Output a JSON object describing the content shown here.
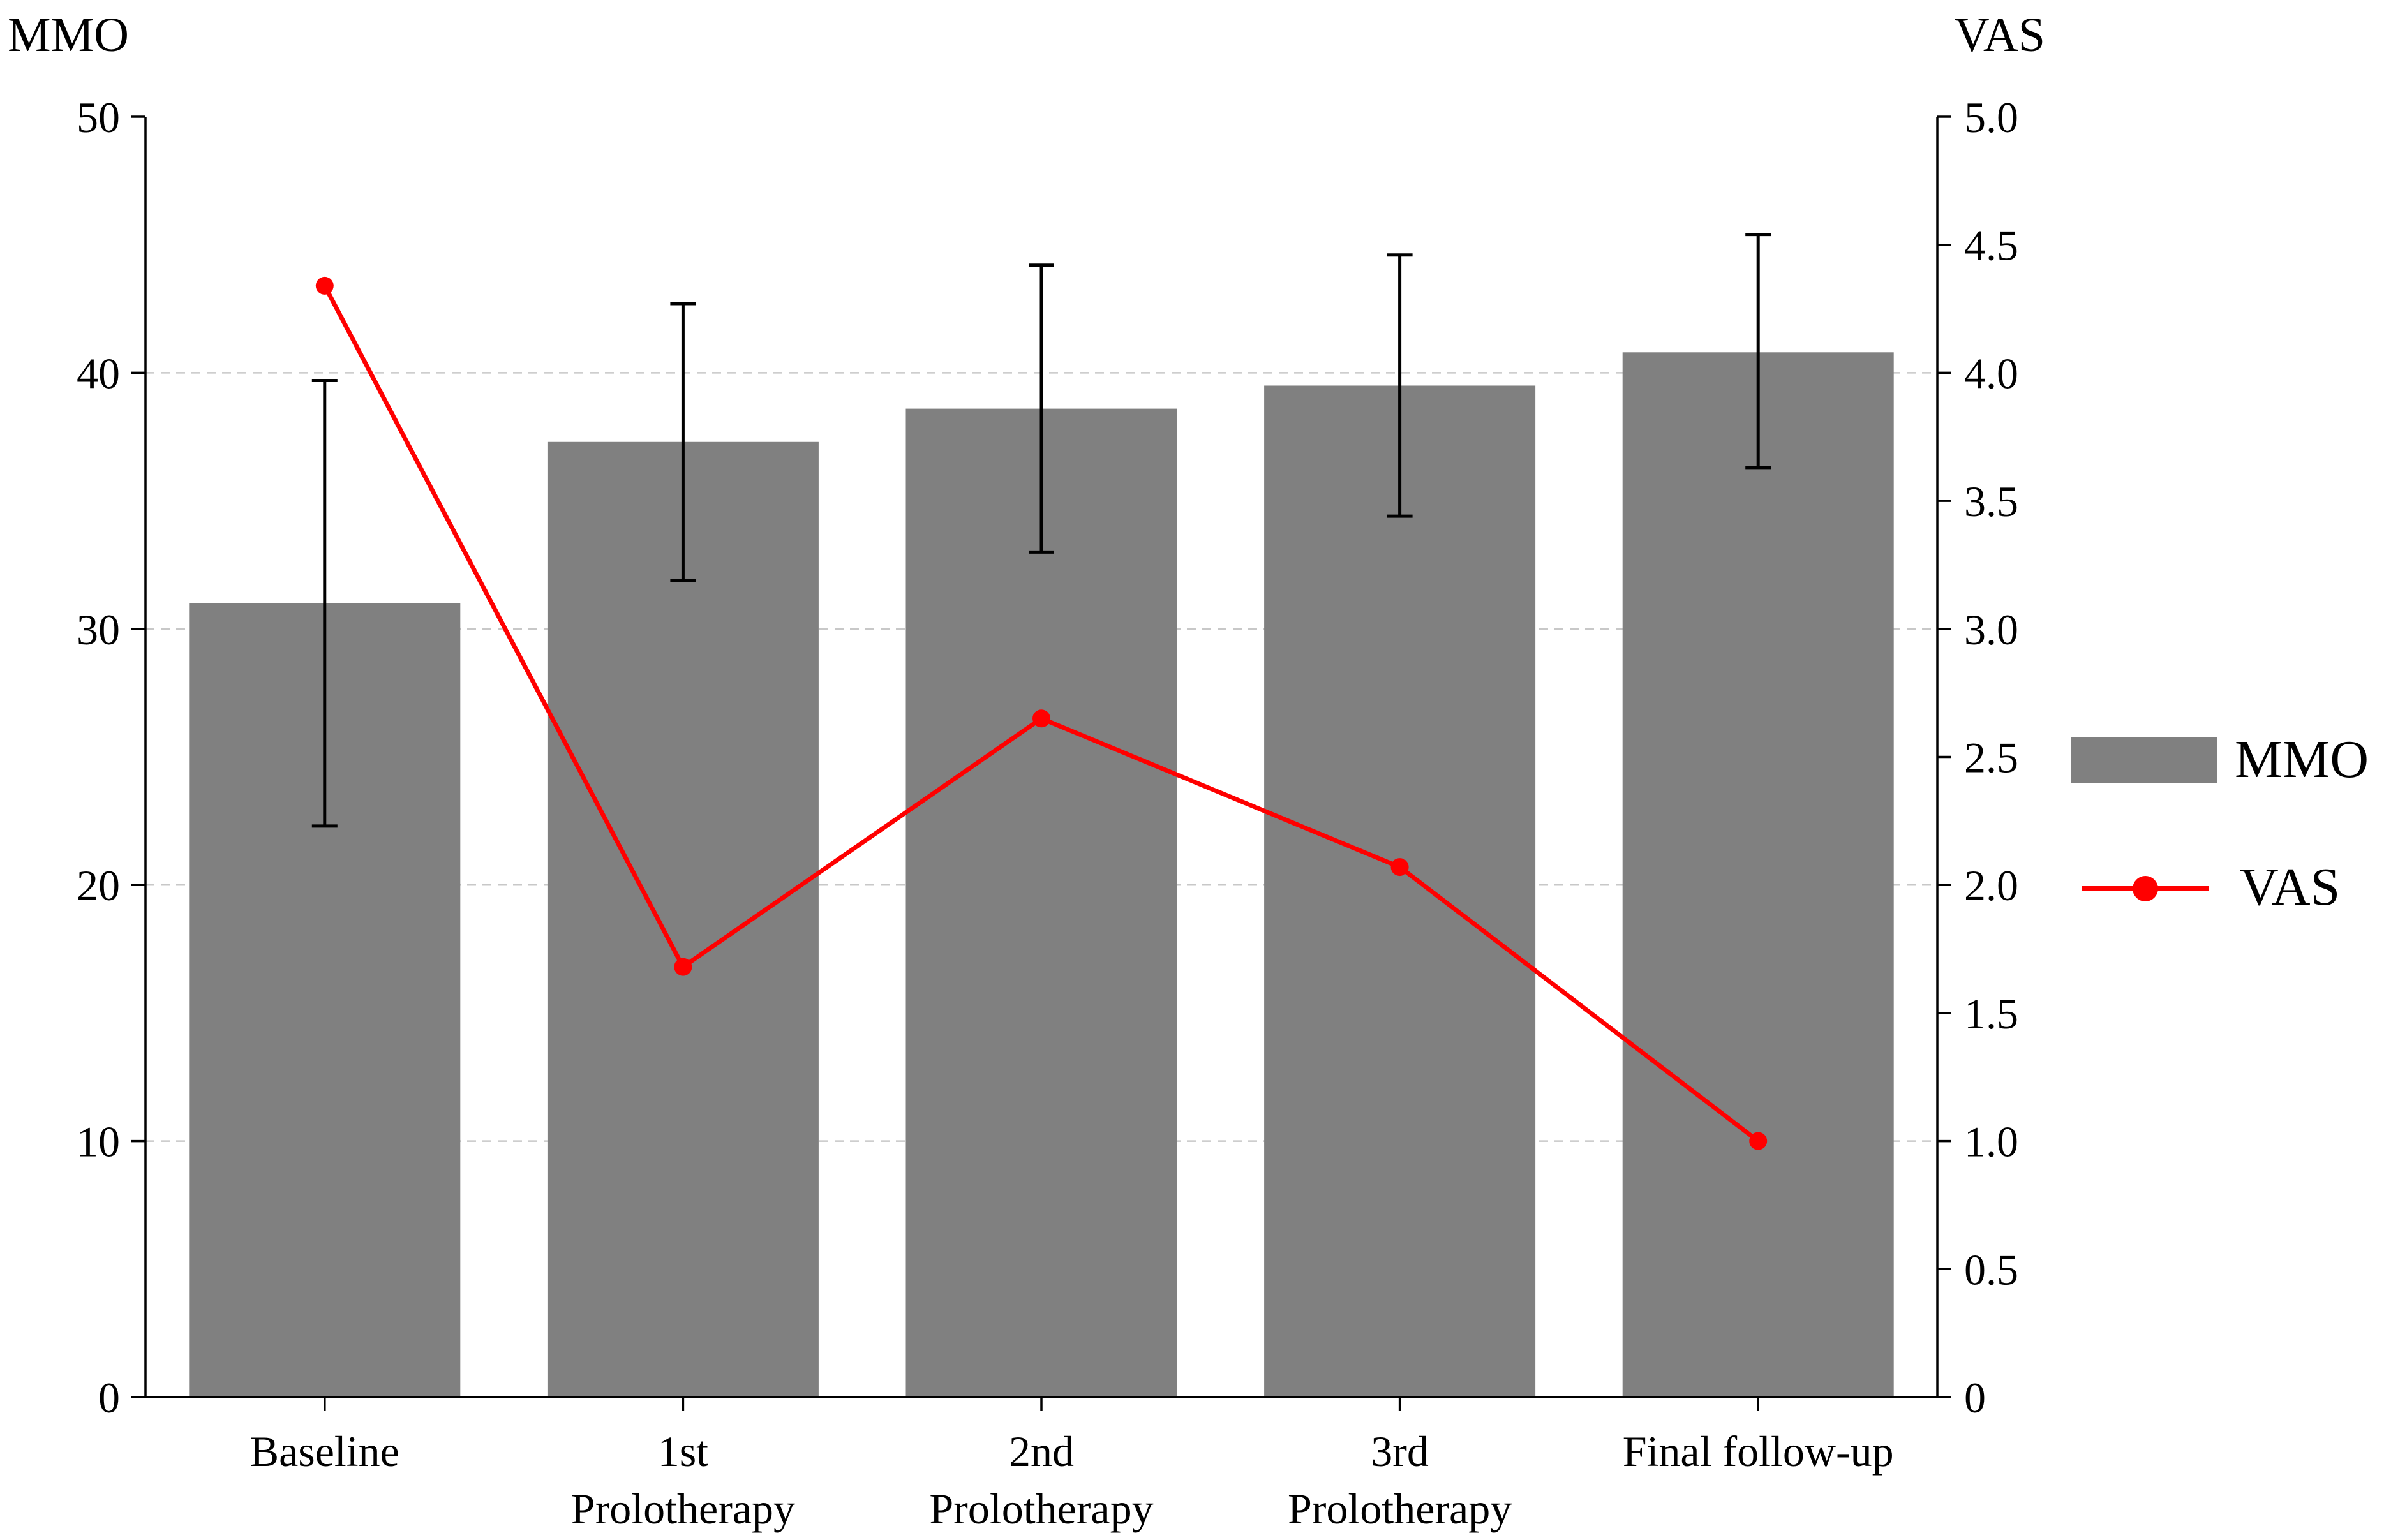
{
  "chart_data": {
    "type": "bar",
    "categories": [
      [
        "Baseline"
      ],
      [
        "1st",
        "Prolotherapy"
      ],
      [
        "2nd",
        "Prolotherapy"
      ],
      [
        "3rd",
        "Prolotherapy"
      ],
      [
        "Final follow-up"
      ]
    ],
    "left_axis": {
      "label": "MMO",
      "ylim": [
        0,
        50
      ],
      "ticks": [
        "0",
        "10",
        "20",
        "30",
        "40",
        "50"
      ],
      "tick_values": [
        0,
        10,
        20,
        30,
        40,
        50
      ]
    },
    "right_axis": {
      "label": "VAS",
      "ylim": [
        0,
        5
      ],
      "ticks": [
        "0",
        "0.5",
        "1.0",
        "1.5",
        "2.0",
        "2.5",
        "3.0",
        "3.5",
        "4.0",
        "4.5",
        "5.0"
      ],
      "tick_values": [
        0,
        0.5,
        1,
        1.5,
        2,
        2.5,
        3,
        3.5,
        4,
        4.5,
        5
      ]
    },
    "series": [
      {
        "name": "MMO",
        "type": "bar",
        "axis": "left",
        "values": [
          31.0,
          37.3,
          38.6,
          39.5,
          40.8
        ],
        "error_low": [
          22.3,
          31.9,
          33.0,
          34.4,
          36.3
        ],
        "error_high": [
          39.7,
          42.7,
          44.2,
          44.6,
          45.4
        ],
        "color": "#808080"
      },
      {
        "name": "VAS",
        "type": "line",
        "axis": "right",
        "values": [
          4.34,
          1.68,
          2.65,
          2.07,
          1.0
        ],
        "color": "#ff0000"
      }
    ],
    "grid": true,
    "legend_position": "right"
  }
}
